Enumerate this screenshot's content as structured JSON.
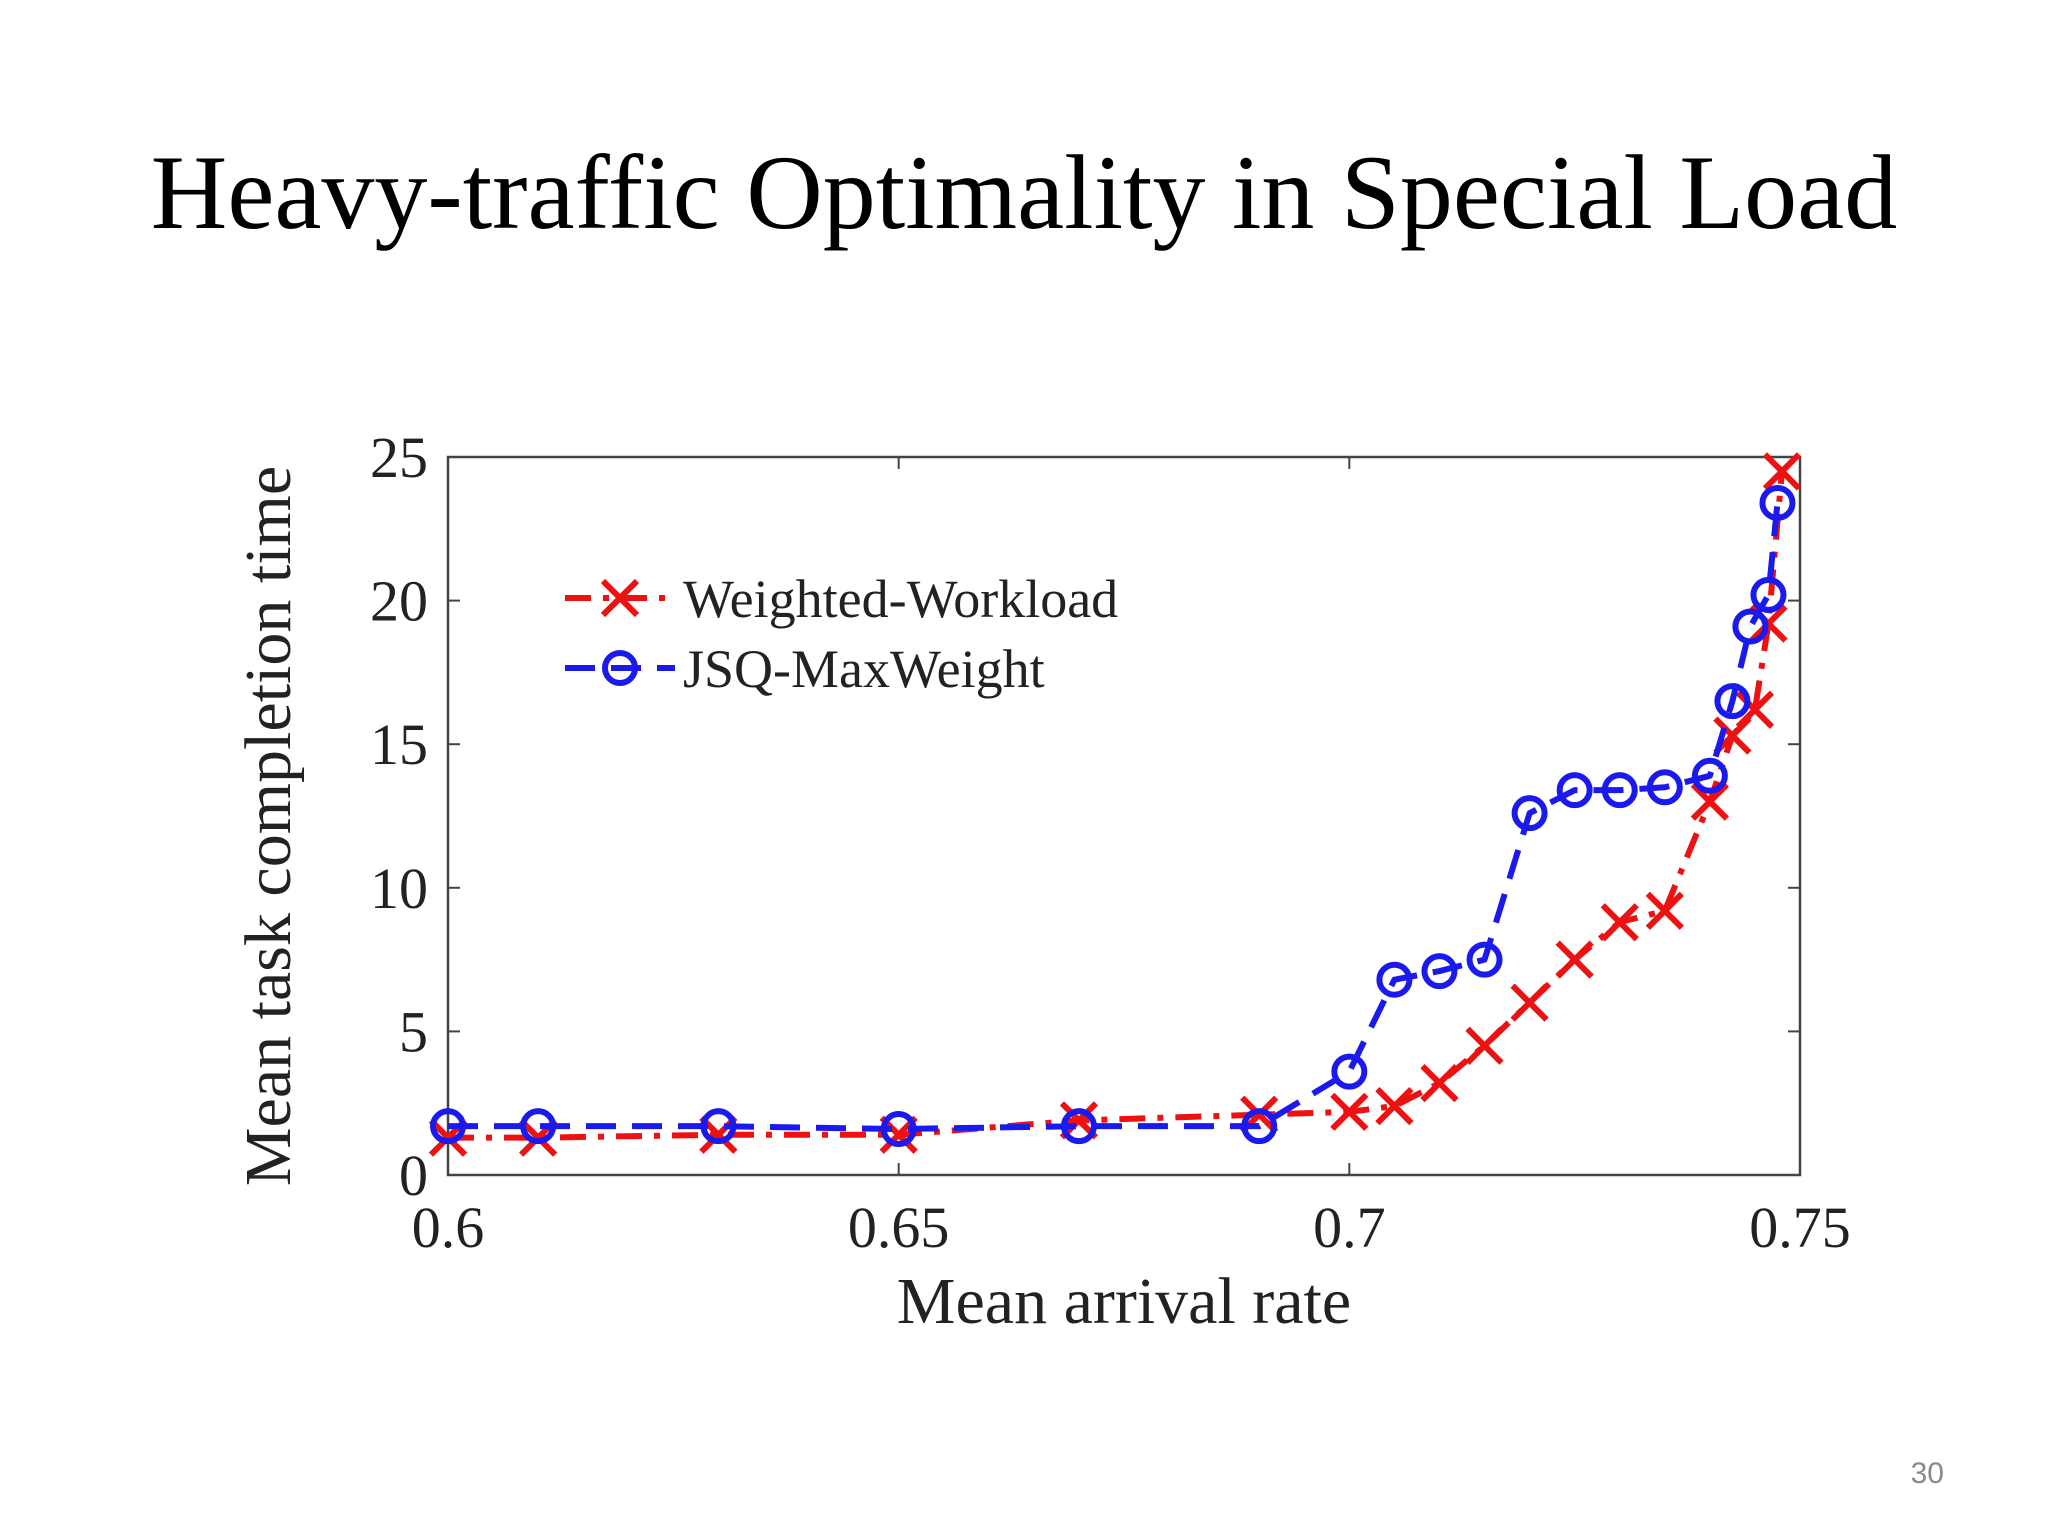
{
  "slide": {
    "title": "Heavy-traffic Optimality in Special Load",
    "page_number": "30"
  },
  "chart_data": {
    "type": "line",
    "xlabel": "Mean arrival rate",
    "ylabel": "Mean task completion time",
    "xlim": [
      0.6,
      0.75
    ],
    "ylim": [
      0,
      25
    ],
    "xticks": [
      0.6,
      0.65,
      0.7,
      0.75
    ],
    "xtick_labels": [
      "0.6",
      "0.65",
      "0.7",
      "0.75"
    ],
    "yticks": [
      0,
      5,
      10,
      15,
      20,
      25
    ],
    "ytick_labels": [
      "0",
      "5",
      "10",
      "15",
      "20",
      "25"
    ],
    "grid": false,
    "legend_position": "top-left",
    "series": [
      {
        "name": "Weighted-Workload",
        "color": "#ee1111",
        "marker": "x",
        "line_style": "dash-dot",
        "x": [
          0.6,
          0.61,
          0.63,
          0.65,
          0.67,
          0.69,
          0.7,
          0.705,
          0.71,
          0.715,
          0.72,
          0.725,
          0.73,
          0.735,
          0.74,
          0.7425,
          0.745,
          0.7465,
          0.748
        ],
        "y": [
          1.3,
          1.3,
          1.4,
          1.4,
          1.9,
          2.1,
          2.2,
          2.4,
          3.2,
          4.5,
          6.0,
          7.5,
          8.8,
          9.2,
          13.0,
          15.3,
          16.2,
          19.2,
          24.5
        ]
      },
      {
        "name": "JSQ-MaxWeight",
        "color": "#1a1aee",
        "marker": "o",
        "line_style": "dashed",
        "x": [
          0.6,
          0.61,
          0.63,
          0.65,
          0.67,
          0.69,
          0.7,
          0.705,
          0.71,
          0.715,
          0.72,
          0.725,
          0.73,
          0.735,
          0.74,
          0.7425,
          0.7445,
          0.7465,
          0.7475
        ],
        "y": [
          1.7,
          1.7,
          1.7,
          1.6,
          1.7,
          1.7,
          3.6,
          6.8,
          7.1,
          7.5,
          12.6,
          13.4,
          13.4,
          13.5,
          13.9,
          16.5,
          19.1,
          20.2,
          23.4
        ]
      }
    ]
  }
}
